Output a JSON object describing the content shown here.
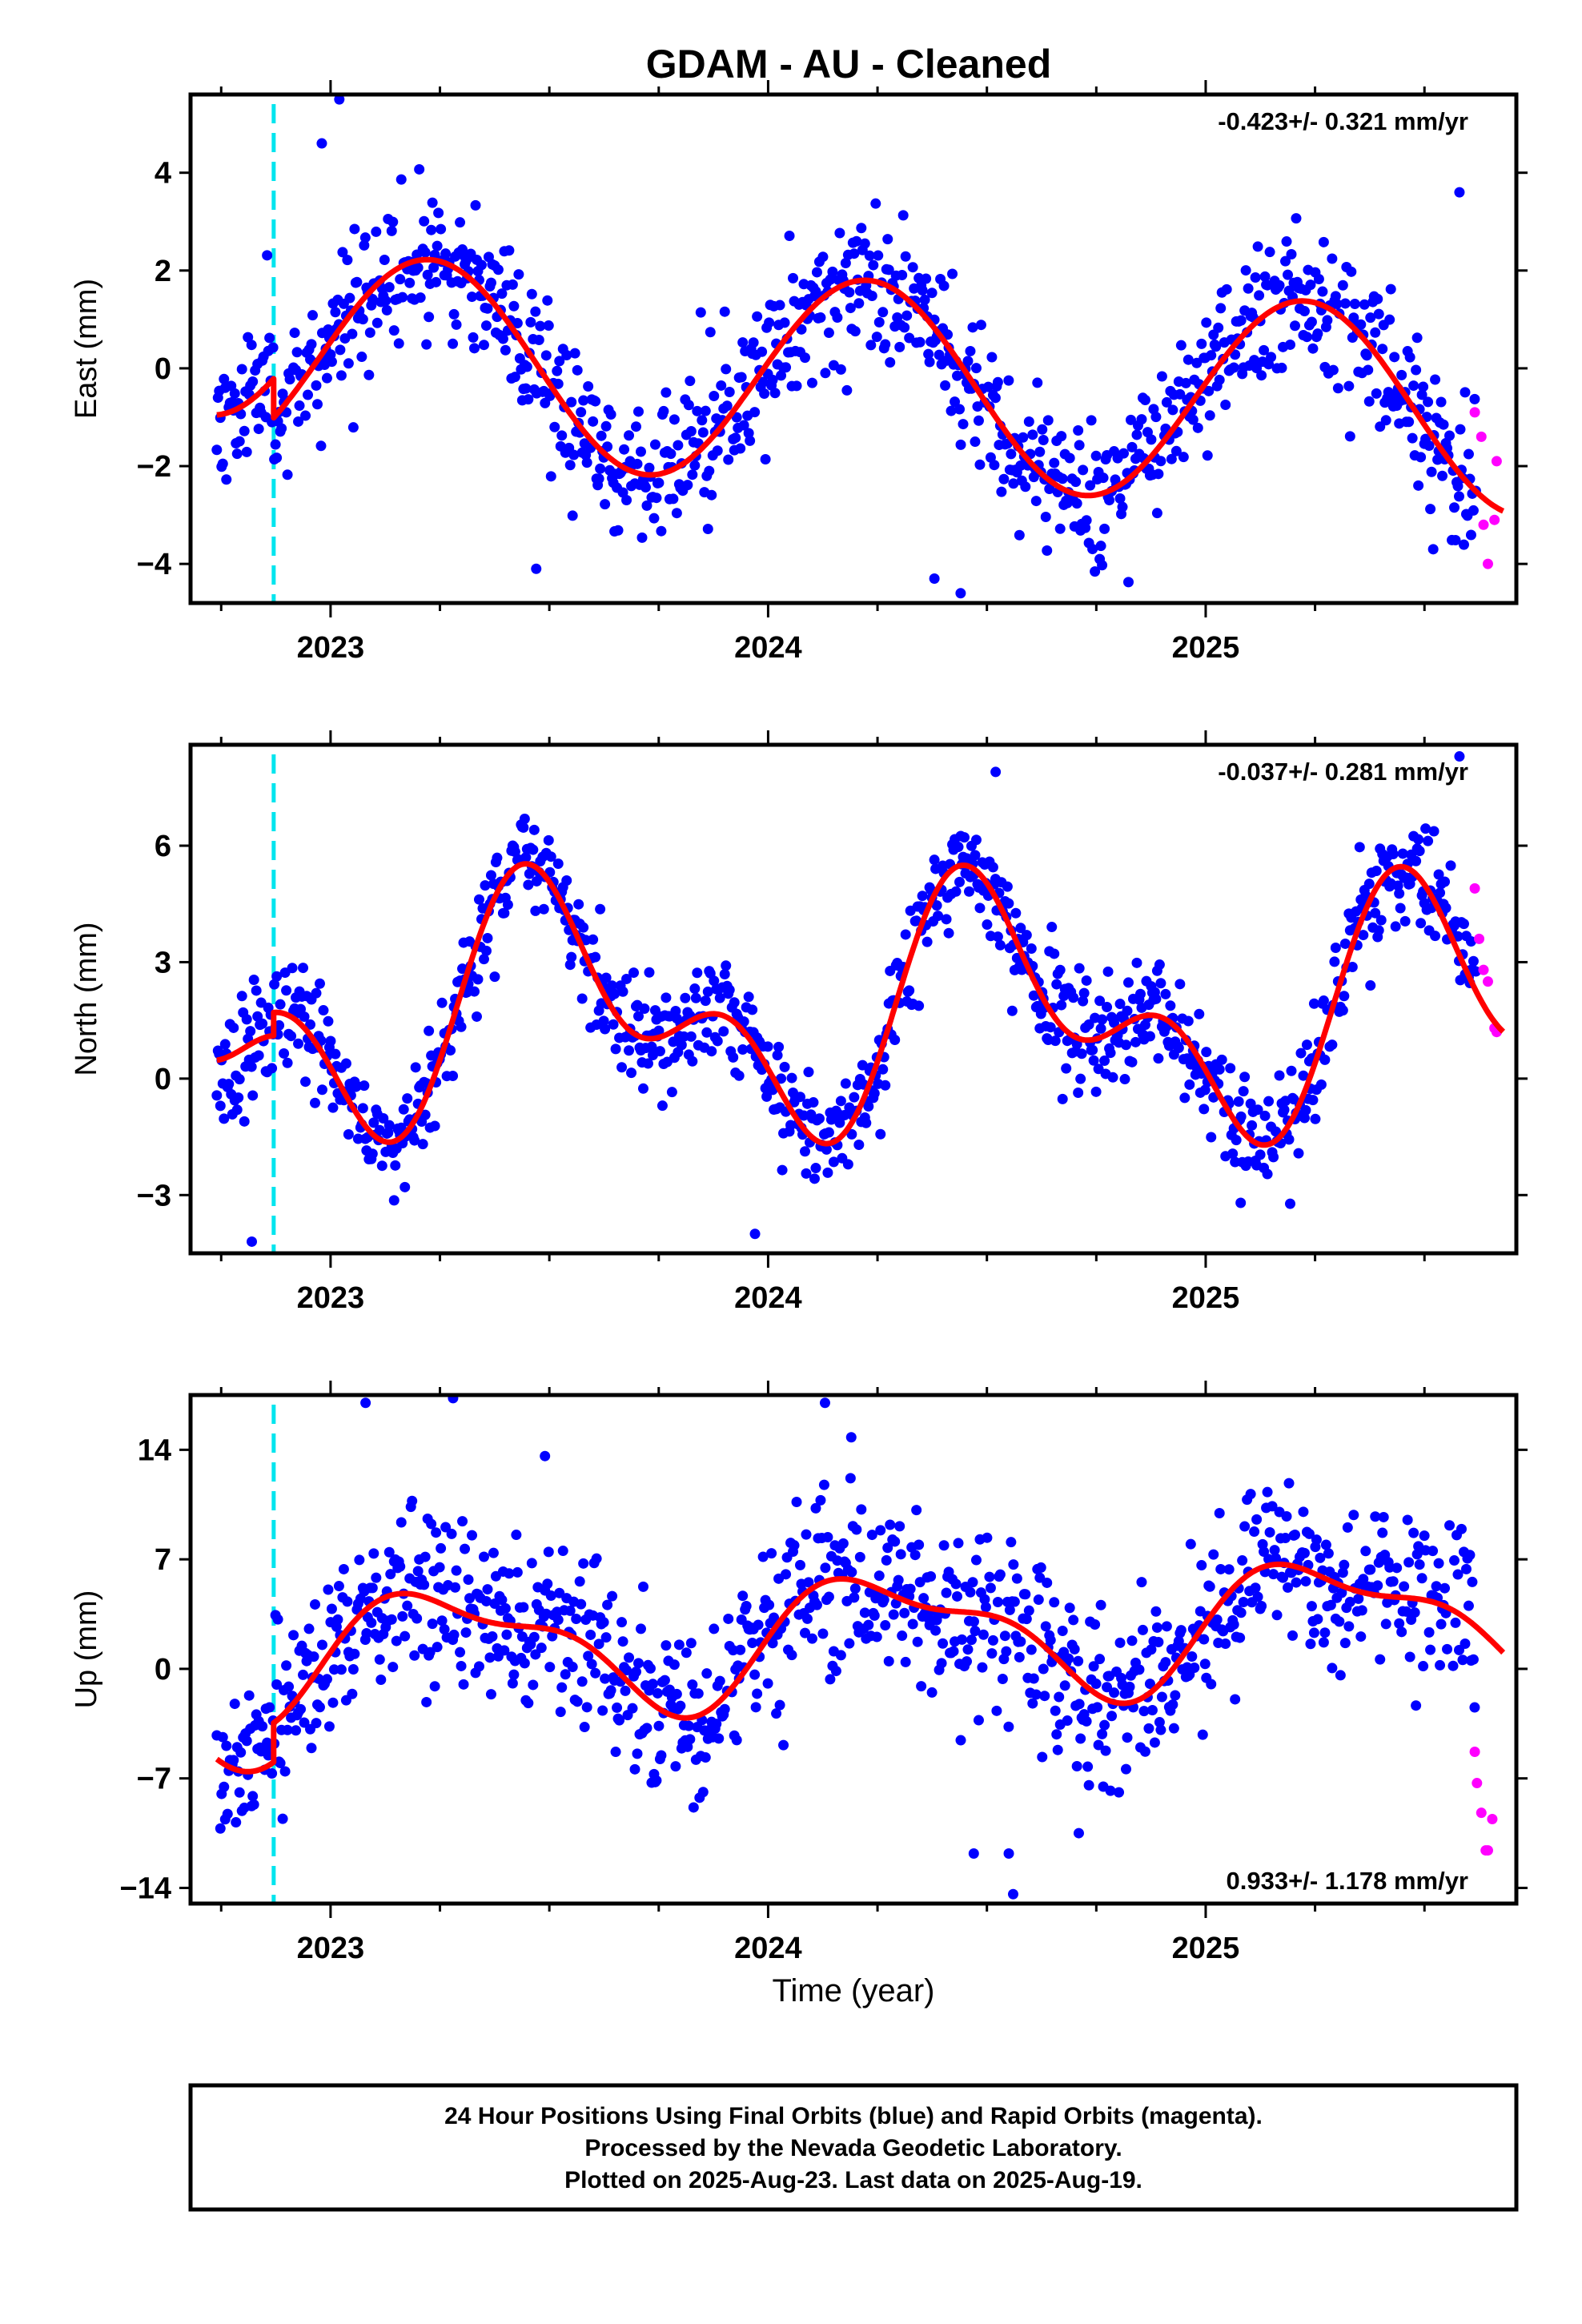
{
  "figure": {
    "title": "GDAM  - AU - Cleaned",
    "footer": [
      "24 Hour Positions Using Final Orbits (blue) and Rapid Orbits (magenta).",
      "Processed by the Nevada Geodetic Laboratory.",
      "Plotted on 2025-Aug-23. Last data on 2025-Aug-19."
    ],
    "colors": {
      "final_orbits": "#0000ff",
      "rapid_orbits": "#ff00ff",
      "model_fit": "#ff0000",
      "equipment_change": "#00e5ee",
      "frame": "#000000"
    }
  },
  "chart_data": [
    {
      "type": "scatter",
      "name": "east",
      "ylabel": "East (mm)",
      "xlabel": "",
      "rate_text": "-0.423+/- 0.321 mm/yr",
      "rate_position": "top-right",
      "xlim": [
        2022.68,
        2025.71
      ],
      "ylim": [
        -4.8,
        5.6
      ],
      "xticks": [
        2023,
        2024,
        2025
      ],
      "xtick_labels": [
        "2023",
        "2024",
        "2025"
      ],
      "yticks": [
        -4,
        -2,
        0,
        2,
        4
      ],
      "ytick_labels": [
        "−4",
        "−2",
        "0",
        "2",
        "4"
      ],
      "offset_epoch": 2022.87,
      "model": {
        "start": 2022.74,
        "end": 2025.68,
        "step": [
          2022.87,
          -0.8
        ],
        "trend": -0.423,
        "annual": [
          0.32,
          2.07
        ],
        "semiannual": [
          0.0,
          0.0
        ],
        "ref": 2024.0,
        "base": 0.6
      },
      "final_orbits": {
        "x_range": [
          2022.74,
          2025.62
        ],
        "outliers": [
          [
            2023.02,
            5.5
          ],
          [
            2022.98,
            4.6
          ],
          [
            2023.47,
            -4.1
          ],
          [
            2024.44,
            -4.6
          ],
          [
            2024.38,
            -4.3
          ],
          [
            2025.52,
            -3.7
          ],
          [
            2025.58,
            3.6
          ]
        ],
        "sigma": 0.75,
        "seed": 11
      },
      "rapid_orbits": {
        "x": [
          2025.615,
          2025.63,
          2025.635,
          2025.645,
          2025.66,
          2025.665
        ],
        "y": [
          -0.9,
          -1.4,
          -3.2,
          -4.0,
          -3.1,
          -1.9
        ]
      }
    },
    {
      "type": "scatter",
      "name": "north",
      "ylabel": "North (mm)",
      "xlabel": "",
      "rate_text": "-0.037+/- 0.281 mm/yr",
      "rate_position": "top-right",
      "xlim": [
        2022.68,
        2025.71
      ],
      "ylim": [
        -4.5,
        8.6
      ],
      "xticks": [
        2023,
        2024,
        2025
      ],
      "xtick_labels": [
        "2023",
        "2024",
        "2025"
      ],
      "yticks": [
        -3,
        0,
        3,
        6
      ],
      "ytick_labels": [
        "−3",
        "0",
        "3",
        "6"
      ],
      "offset_epoch": 2022.87,
      "model": {
        "start": 2022.74,
        "end": 2025.68,
        "step": [
          2022.87,
          0.6
        ],
        "trend": -0.037,
        "annual": [
          -2.4,
          -0.3
        ],
        "semiannual": [
          0.95,
          -1.45
        ],
        "ref": 2024.0,
        "base": 1.1
      },
      "final_orbits": {
        "x_range": [
          2022.74,
          2025.62
        ],
        "outliers": [
          [
            2024.52,
            7.9
          ],
          [
            2025.58,
            8.3
          ],
          [
            2023.97,
            -4.0
          ],
          [
            2022.82,
            -4.2
          ],
          [
            2025.08,
            -3.2
          ]
        ],
        "sigma": 0.7,
        "seed": 23
      },
      "rapid_orbits": {
        "x": [
          2025.615,
          2025.625,
          2025.635,
          2025.645,
          2025.66,
          2025.665
        ],
        "y": [
          4.9,
          3.6,
          2.8,
          2.5,
          1.3,
          1.2
        ]
      }
    },
    {
      "type": "scatter",
      "name": "up",
      "ylabel": "Up (mm)",
      "xlabel": "Time (year)",
      "rate_text": "0.933+/- 1.178 mm/yr",
      "rate_position": "bottom-right",
      "xlim": [
        2022.68,
        2025.71
      ],
      "ylim": [
        -15,
        17.5
      ],
      "xticks": [
        2023,
        2024,
        2025
      ],
      "xtick_labels": [
        "2023",
        "2024",
        "2025"
      ],
      "yticks": [
        -14,
        -7,
        0,
        7,
        14
      ],
      "ytick_labels": [
        "−14",
        "−7",
        "0",
        "7",
        "14"
      ],
      "offset_epoch": 2022.87,
      "model": {
        "start": 2022.74,
        "end": 2025.68,
        "step": [
          2022.87,
          2.5
        ],
        "trend": 0.933,
        "annual": [
          -0.5,
          3.6
        ],
        "semiannual": [
          0.6,
          1.3
        ],
        "ref": 2024.0,
        "base": -0.6
      },
      "final_orbits": {
        "x_range": [
          2022.74,
          2025.62
        ],
        "outliers": [
          [
            2023.08,
            17.0
          ],
          [
            2023.28,
            17.3
          ],
          [
            2024.13,
            17.0
          ],
          [
            2024.19,
            14.8
          ],
          [
            2023.49,
            13.6
          ],
          [
            2024.56,
            -14.4
          ],
          [
            2024.47,
            -11.8
          ],
          [
            2024.55,
            -11.8
          ],
          [
            2024.71,
            -10.5
          ]
        ],
        "sigma": 2.8,
        "seed": 37
      },
      "rapid_orbits": {
        "x": [
          2025.615,
          2025.62,
          2025.63,
          2025.64,
          2025.645,
          2025.655
        ],
        "y": [
          -5.3,
          -7.3,
          -9.2,
          -11.6,
          -11.6,
          -9.6
        ]
      }
    }
  ]
}
